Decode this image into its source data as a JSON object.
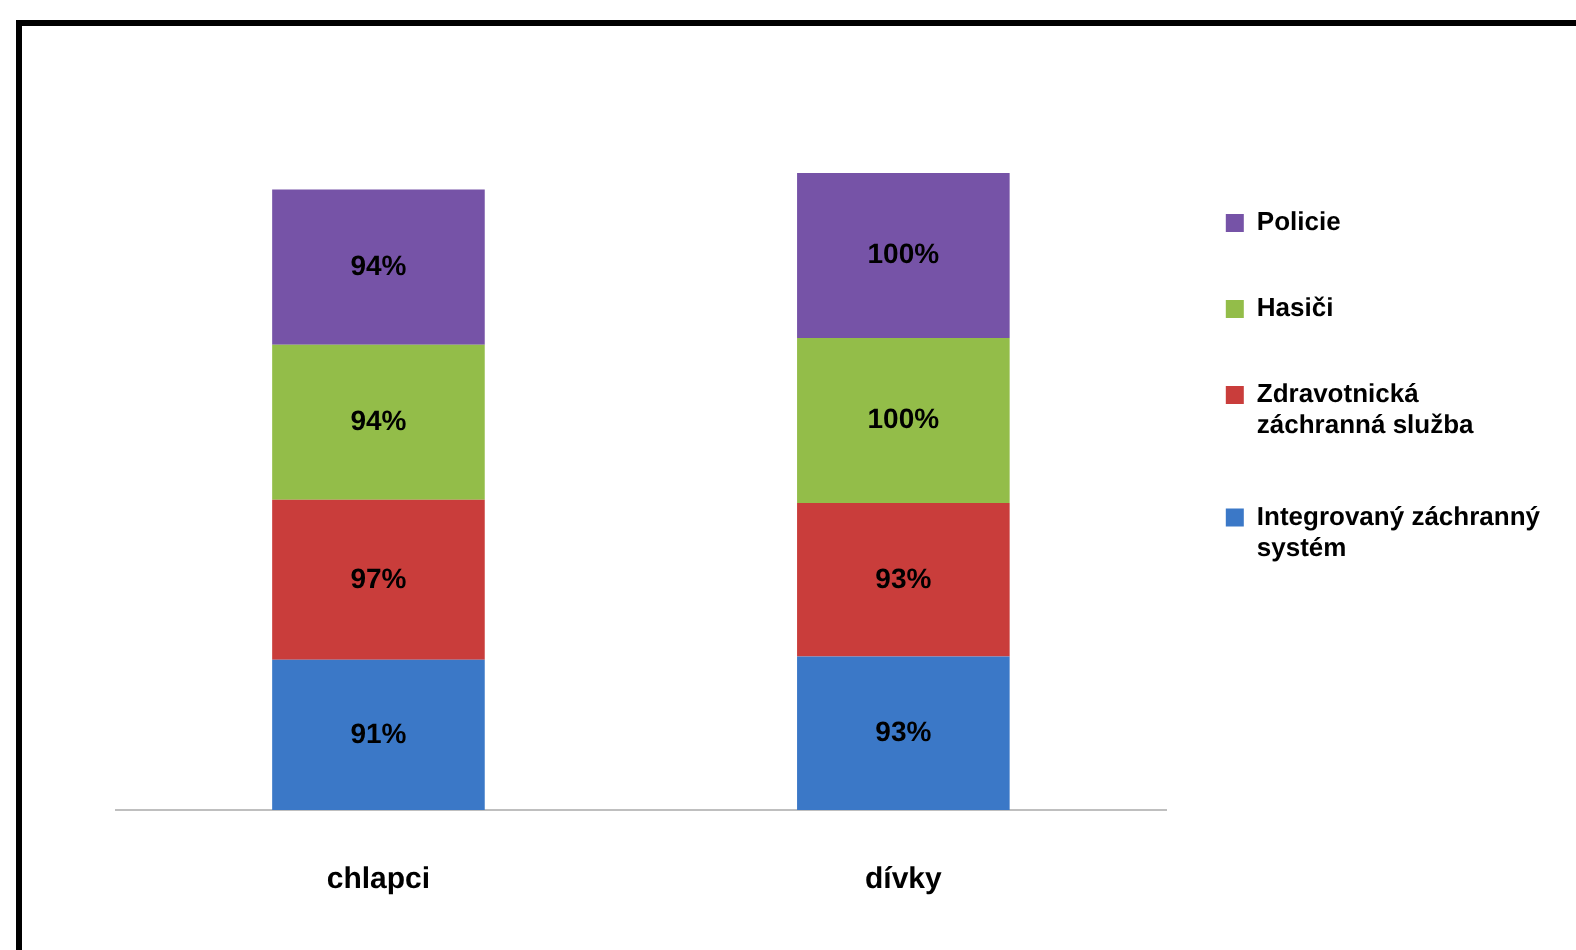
{
  "chart_data": {
    "type": "bar",
    "categories": [
      "chlapci",
      "dívky"
    ],
    "series": [
      {
        "name": "Integrovaný záchranný systém",
        "color": "#3b78c7",
        "values": [
          91,
          93
        ],
        "value_labels": [
          "91%",
          "93%"
        ]
      },
      {
        "name": "Zdravotnická záchranná služba",
        "color": "#c93d3b",
        "values": [
          97,
          93
        ],
        "value_labels": [
          "97%",
          "93%"
        ]
      },
      {
        "name": "Hasiči",
        "color": "#93bd49",
        "values": [
          94,
          100
        ],
        "value_labels": [
          "94%",
          "100%"
        ]
      },
      {
        "name": "Policie",
        "color": "#7653a7",
        "values": [
          94,
          100
        ],
        "value_labels": [
          "94%",
          "100%"
        ]
      }
    ],
    "stacked": true,
    "legend": "right",
    "tick_labels": "x",
    "grid": false
  }
}
